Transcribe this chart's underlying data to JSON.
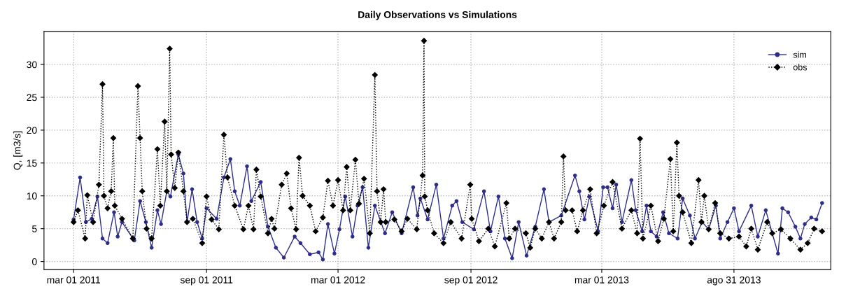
{
  "chart_data": {
    "type": "line",
    "title": "Daily Observations vs Simulations",
    "ylabel": "Q, [m3/s]",
    "xlim": [
      "2011-01-19",
      "2014-01-12"
    ],
    "xticks": [
      {
        "value": "2011-03-01",
        "label": "mar 01 2011"
      },
      {
        "value": "2011-09-01",
        "label": "sep 01 2011"
      },
      {
        "value": "2012-03-01",
        "label": "mar 01 2012"
      },
      {
        "value": "2012-09-01",
        "label": "sep 01 2012"
      },
      {
        "value": "2013-03-01",
        "label": "mar 01 2013"
      },
      {
        "value": "2013-08-31",
        "label": "ago 31 2013"
      }
    ],
    "ylim": [
      -1.2,
      35
    ],
    "yticks": [
      0,
      5,
      10,
      15,
      20,
      25,
      30
    ],
    "grid": true,
    "legend": "top right",
    "series": [
      {
        "name": "sim",
        "color": "#2e2e8a",
        "marker": "circle",
        "line_style": "solid",
        "x": [
          "2011-03-01",
          "2011-03-10",
          "2011-03-18",
          "2011-03-26",
          "2011-04-03",
          "2011-04-10",
          "2011-04-17",
          "2011-04-26",
          "2011-05-01",
          "2011-05-07",
          "2011-05-24",
          "2011-06-01",
          "2011-06-09",
          "2011-06-17",
          "2011-06-25",
          "2011-06-30",
          "2011-07-08",
          "2011-07-13",
          "2011-07-24",
          "2011-07-31",
          "2011-08-05",
          "2011-08-12",
          "2011-08-19",
          "2011-08-26",
          "2011-09-01",
          "2011-09-15",
          "2011-09-25",
          "2011-10-04",
          "2011-10-10",
          "2011-10-17",
          "2011-10-27",
          "2011-11-02",
          "2011-11-15",
          "2011-11-25",
          "2011-12-06",
          "2011-12-17",
          "2012-01-01",
          "2012-01-09",
          "2012-01-22",
          "2012-02-03",
          "2012-02-09",
          "2012-02-16",
          "2012-02-25",
          "2012-03-03",
          "2012-03-11",
          "2012-03-21",
          "2012-03-28",
          "2012-04-04",
          "2012-04-12",
          "2012-04-21",
          "2012-05-05",
          "2012-05-15",
          "2012-05-28",
          "2012-06-13",
          "2012-06-19",
          "2012-06-23",
          "2012-07-03",
          "2012-07-15",
          "2012-07-25",
          "2012-08-06",
          "2012-08-12",
          "2012-08-20",
          "2012-09-05",
          "2012-09-19",
          "2012-09-28",
          "2012-10-09",
          "2012-10-18",
          "2012-10-28",
          "2012-11-06",
          "2012-11-17",
          "2012-11-29",
          "2012-12-11",
          "2012-12-18",
          "2013-01-04",
          "2013-01-23",
          "2013-01-29",
          "2013-02-05",
          "2013-02-12",
          "2013-02-24",
          "2013-03-03",
          "2013-03-09",
          "2013-03-16",
          "2013-03-21",
          "2013-03-29",
          "2013-04-11",
          "2013-04-17",
          "2013-04-26",
          "2013-05-02",
          "2013-05-08",
          "2013-05-16",
          "2013-05-25",
          "2013-06-02",
          "2013-06-14",
          "2013-06-21",
          "2013-07-01",
          "2013-07-08",
          "2013-07-18",
          "2013-07-27",
          "2013-08-06",
          "2013-08-12",
          "2013-08-22",
          "2013-08-31",
          "2013-09-07",
          "2013-09-24",
          "2013-10-03",
          "2013-10-14",
          "2013-10-23",
          "2013-10-31",
          "2013-11-06",
          "2013-11-14",
          "2013-11-24",
          "2013-12-01",
          "2013-12-07",
          "2013-12-16",
          "2013-12-23",
          "2013-12-31"
        ],
        "values": [
          6.4,
          12.8,
          6.0,
          6.5,
          9.9,
          3.5,
          2.8,
          7.5,
          3.8,
          6.0,
          3.2,
          9.2,
          6.0,
          2.1,
          7.8,
          5.7,
          10.7,
          9.9,
          16.3,
          13.4,
          6.0,
          11.0,
          6.0,
          3.5,
          8.1,
          6.5,
          12.8,
          15.6,
          10.7,
          8.5,
          14.5,
          9.2,
          12.1,
          5.3,
          2.1,
          0.6,
          3.8,
          2.8,
          1.1,
          1.4,
          0.3,
          5.7,
          1.2,
          4.9,
          9.9,
          3.8,
          8.5,
          11.3,
          2.1,
          8.5,
          4.3,
          7.5,
          4.3,
          11.3,
          7.0,
          9.6,
          6.4,
          11.7,
          3.5,
          8.5,
          9.2,
          6.0,
          4.9,
          10.7,
          4.6,
          9.9,
          3.5,
          0.5,
          6.0,
          0.9,
          5.3,
          11.0,
          6.0,
          7.0,
          13.1,
          10.7,
          6.4,
          9.9,
          4.6,
          11.3,
          11.3,
          8.1,
          11.7,
          6.0,
          12.4,
          7.8,
          4.6,
          8.5,
          4.6,
          3.8,
          7.5,
          4.3,
          3.5,
          9.6,
          7.0,
          3.5,
          6.0,
          4.9,
          8.5,
          3.5,
          6.0,
          8.1,
          4.6,
          8.5,
          3.8,
          7.8,
          4.3,
          1.2,
          8.1,
          7.5,
          5.3,
          3.5,
          5.7,
          6.7,
          6.4,
          8.9
        ]
      },
      {
        "name": "obs",
        "color": "#000000",
        "marker": "diamond",
        "line_style": "dotted",
        "x": [
          "2011-03-01",
          "2011-03-07",
          "2011-03-17",
          "2011-03-20",
          "2011-03-28",
          "2011-04-05",
          "2011-04-10",
          "2011-04-12",
          "2011-04-17",
          "2011-04-22",
          "2011-04-25",
          "2011-04-27",
          "2011-05-07",
          "2011-05-22",
          "2011-05-29",
          "2011-06-01",
          "2011-06-04",
          "2011-06-10",
          "2011-06-17",
          "2011-06-25",
          "2011-06-29",
          "2011-07-05",
          "2011-07-08",
          "2011-07-12",
          "2011-07-14",
          "2011-07-19",
          "2011-07-24",
          "2011-07-31",
          "2011-08-05",
          "2011-08-13",
          "2011-08-26",
          "2011-09-01",
          "2011-09-08",
          "2011-09-18",
          "2011-09-25",
          "2011-09-30",
          "2011-10-10",
          "2011-10-22",
          "2011-10-29",
          "2011-11-05",
          "2011-11-09",
          "2011-11-15",
          "2011-11-25",
          "2011-11-30",
          "2011-12-04",
          "2011-12-14",
          "2011-12-21",
          "2011-12-27",
          "2012-01-03",
          "2012-01-07",
          "2012-01-12",
          "2012-01-22",
          "2012-01-30",
          "2012-02-09",
          "2012-02-16",
          "2012-02-23",
          "2012-03-01",
          "2012-03-08",
          "2012-03-13",
          "2012-03-18",
          "2012-03-25",
          "2012-03-30",
          "2012-04-06",
          "2012-04-14",
          "2012-04-21",
          "2012-04-24",
          "2012-04-29",
          "2012-05-03",
          "2012-05-06",
          "2012-05-18",
          "2012-05-28",
          "2012-06-05",
          "2012-06-18",
          "2012-06-26",
          "2012-06-28",
          "2012-06-29",
          "2012-07-03",
          "2012-07-12",
          "2012-07-25",
          "2012-08-04",
          "2012-08-19",
          "2012-08-31",
          "2012-09-02",
          "2012-09-12",
          "2012-09-25",
          "2012-10-04",
          "2012-10-20",
          "2012-10-24",
          "2012-11-01",
          "2012-11-16",
          "2012-11-22",
          "2012-11-29",
          "2012-12-08",
          "2012-12-18",
          "2012-12-25",
          "2013-01-04",
          "2013-01-07",
          "2013-01-10",
          "2013-01-19",
          "2013-01-26",
          "2013-02-03",
          "2013-02-13",
          "2013-02-22",
          "2013-03-04",
          "2013-03-16",
          "2013-03-29",
          "2013-04-11",
          "2013-04-19",
          "2013-04-23",
          "2013-04-27",
          "2013-05-08",
          "2013-05-18",
          "2013-05-26",
          "2013-06-04",
          "2013-06-08",
          "2013-06-13",
          "2013-06-16",
          "2013-06-21",
          "2013-07-03",
          "2013-07-13",
          "2013-07-17",
          "2013-07-21",
          "2013-07-27",
          "2013-08-05",
          "2013-08-12",
          "2013-08-24",
          "2013-09-07",
          "2013-09-17",
          "2013-09-24",
          "2013-10-03",
          "2013-10-16",
          "2013-10-23",
          "2013-11-04",
          "2013-11-17",
          "2013-12-01",
          "2013-12-11",
          "2013-12-20",
          "2013-12-31"
        ],
        "values": [
          6.0,
          7.8,
          3.5,
          10.1,
          6.0,
          11.7,
          27.0,
          10.0,
          8.1,
          10.7,
          18.8,
          8.5,
          6.5,
          3.5,
          26.7,
          18.8,
          10.7,
          5.0,
          3.5,
          17.1,
          8.5,
          21.3,
          10.7,
          32.4,
          16.3,
          11.2,
          16.6,
          10.7,
          6.0,
          6.5,
          2.8,
          9.9,
          6.4,
          4.9,
          19.3,
          12.8,
          8.5,
          4.9,
          8.5,
          4.9,
          14.0,
          9.9,
          4.3,
          6.5,
          5.0,
          11.7,
          13.4,
          8.1,
          4.9,
          15.8,
          10.0,
          8.5,
          4.6,
          6.7,
          12.3,
          8.5,
          12.4,
          7.8,
          14.4,
          7.8,
          15.5,
          8.8,
          12.6,
          4.3,
          28.4,
          10.7,
          6.0,
          11.0,
          6.0,
          6.4,
          4.6,
          6.5,
          4.9,
          13.1,
          33.6,
          9.9,
          7.8,
          4.3,
          2.8,
          6.0,
          3.5,
          11.7,
          6.5,
          3.1,
          5.0,
          2.3,
          8.9,
          3.5,
          5.0,
          4.3,
          2.1,
          5.0,
          3.5,
          6.0,
          3.5,
          6.0,
          16.0,
          7.8,
          7.8,
          4.6,
          7.8,
          11.0,
          4.3,
          8.5,
          12.1,
          5.0,
          7.8,
          4.3,
          18.7,
          3.5,
          8.5,
          3.1,
          6.5,
          15.6,
          4.6,
          18.1,
          10.0,
          7.5,
          2.8,
          12.4,
          6.0,
          10.0,
          4.9,
          8.9,
          4.3,
          3.5,
          3.8,
          2.3,
          5.0,
          1.8,
          6.0,
          4.3,
          4.9,
          3.5,
          1.8,
          2.8,
          5.0,
          4.6
        ]
      }
    ]
  }
}
